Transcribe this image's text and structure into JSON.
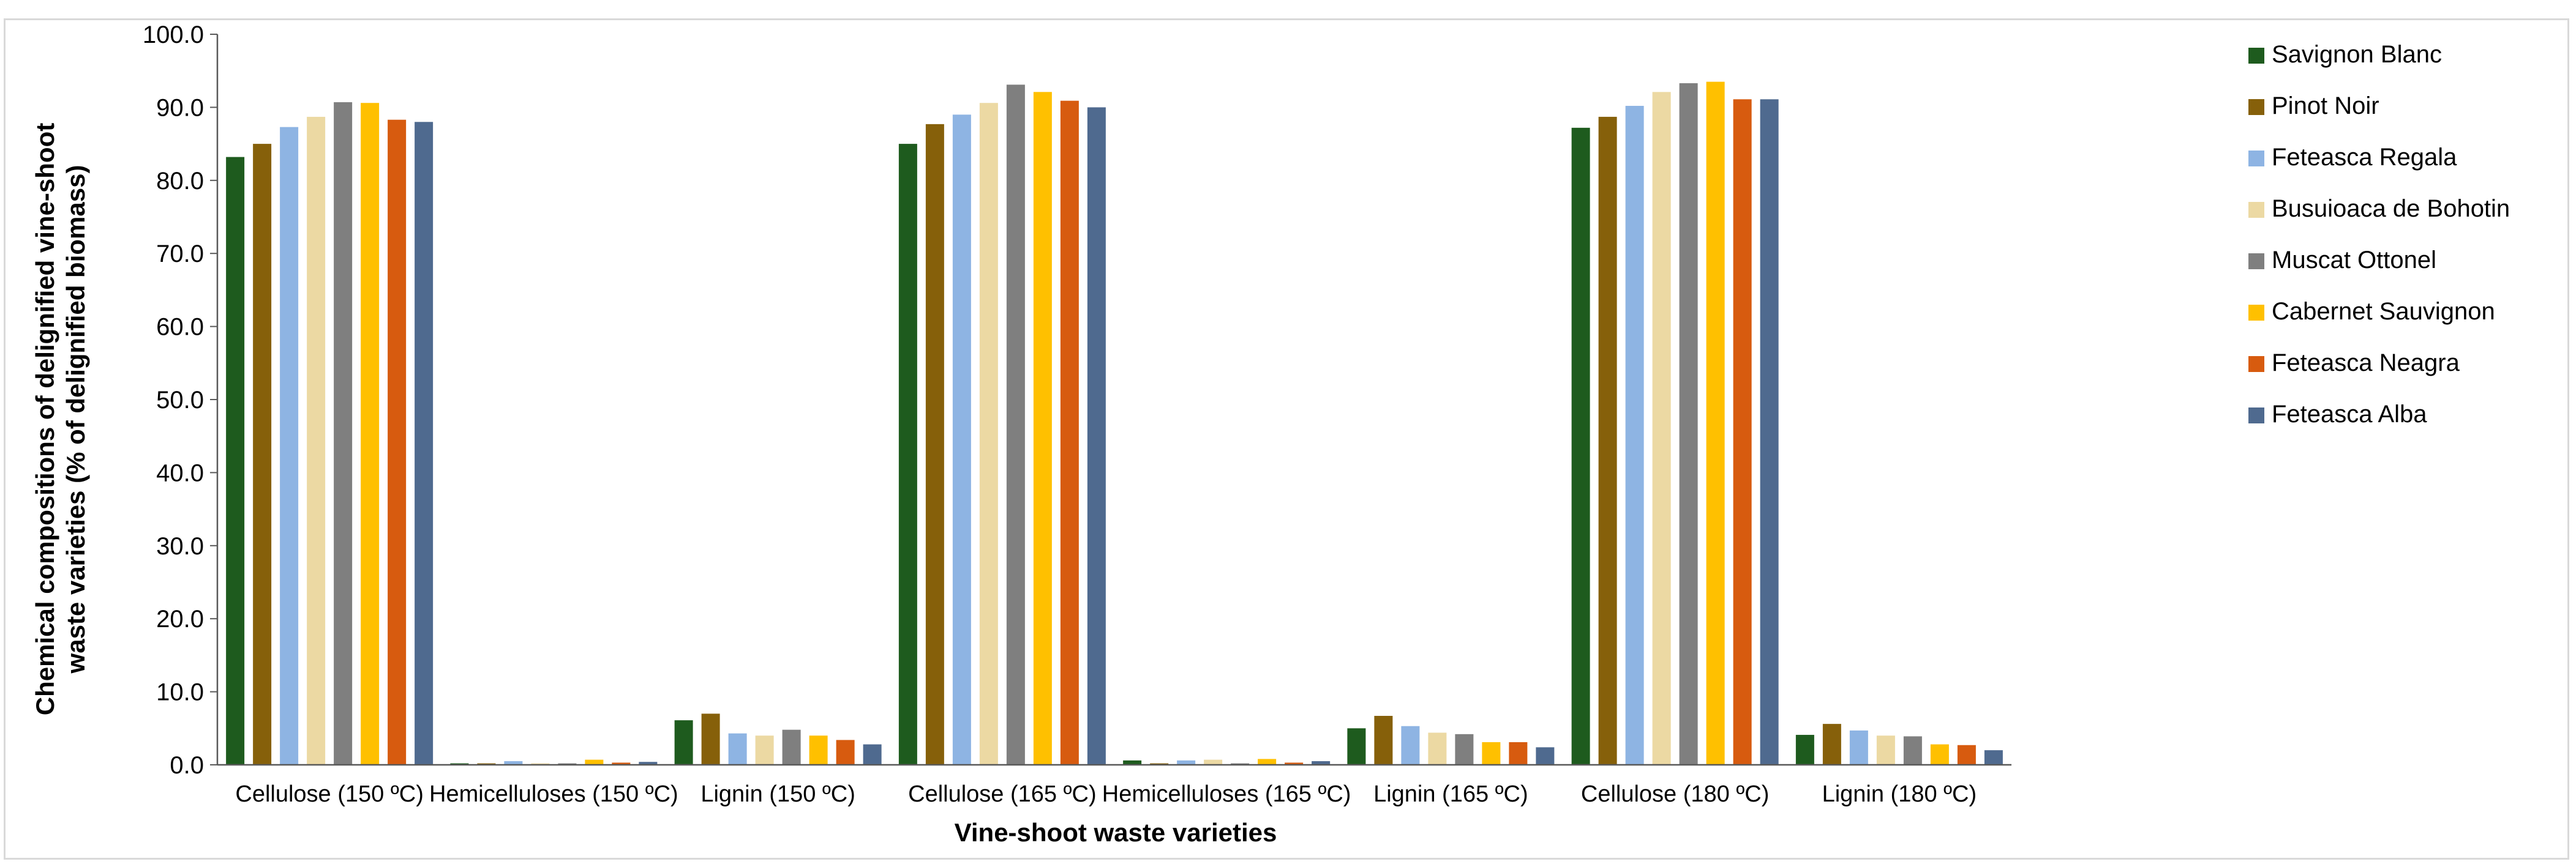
{
  "chart_data": {
    "type": "bar",
    "title": "",
    "xlabel": "Vine-shoot waste varieties",
    "ylabel_line1": "Chemical compositions of delignified vine-shoot",
    "ylabel_line2": "waste varieties (% of delignified biomass)",
    "ylim": [
      0,
      100
    ],
    "yticks": [
      "0.0",
      "10.0",
      "20.0",
      "30.0",
      "40.0",
      "50.0",
      "60.0",
      "70.0",
      "80.0",
      "90.0",
      "100.0"
    ],
    "legend_position": "right",
    "categories": [
      "Cellulose  (150 ºC)",
      "Hemicelluloses (150 ºC)",
      "Lignin (150 ºC)",
      "Cellulose  (165 ºC)",
      "Hemicelluloses (165 ºC)",
      "Lignin (165 ºC)",
      "Cellulose (180 ºC)",
      "Lignin (180 ºC)"
    ],
    "series": [
      {
        "name": "Savignon Blanc",
        "color": "#1e5b1e",
        "values": [
          83.2,
          0.2,
          6.1,
          85.0,
          0.6,
          5.0,
          87.2,
          4.1
        ]
      },
      {
        "name": "Pinot Noir",
        "color": "#86600a",
        "values": [
          85.0,
          0.2,
          7.0,
          87.7,
          0.2,
          6.7,
          88.7,
          5.6
        ]
      },
      {
        "name": "Feteasca Regala",
        "color": "#8eb4e3",
        "values": [
          87.3,
          0.5,
          4.3,
          89.0,
          0.6,
          5.3,
          90.2,
          4.7
        ]
      },
      {
        "name": "Busuioaca de Bohotin",
        "color": "#ecd9a3",
        "values": [
          88.7,
          0.2,
          4.0,
          90.6,
          0.7,
          4.4,
          92.1,
          4.0
        ]
      },
      {
        "name": "Muscat Ottonel",
        "color": "#7f7f7f",
        "values": [
          90.7,
          0.2,
          4.8,
          93.1,
          0.2,
          4.2,
          93.3,
          3.9
        ]
      },
      {
        "name": "Cabernet Sauvignon",
        "color": "#ffc000",
        "values": [
          90.6,
          0.7,
          4.0,
          92.1,
          0.8,
          3.1,
          93.5,
          2.8
        ]
      },
      {
        "name": "Feteasca Neagra",
        "color": "#d75b0f",
        "values": [
          88.3,
          0.3,
          3.4,
          90.9,
          0.3,
          3.1,
          91.1,
          2.7
        ]
      },
      {
        "name": "Feteasca Alba",
        "color": "#4f6a8f",
        "values": [
          88.0,
          0.4,
          2.8,
          90.0,
          0.5,
          2.4,
          91.1,
          2.0
        ]
      }
    ]
  }
}
